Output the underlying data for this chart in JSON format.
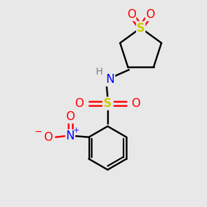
{
  "background_color": "#e8e8e8",
  "fig_size": [
    3.0,
    3.0
  ],
  "dpi": 100,
  "atom_colors": {
    "C": "#000000",
    "H": "#708090",
    "N": "#0000ff",
    "O": "#ff0000",
    "S_sulfonyl": "#cccc00",
    "S_ring": "#cccc00",
    "minus": "#ff0000"
  },
  "bond_color": "#000000",
  "bond_width": 1.8
}
